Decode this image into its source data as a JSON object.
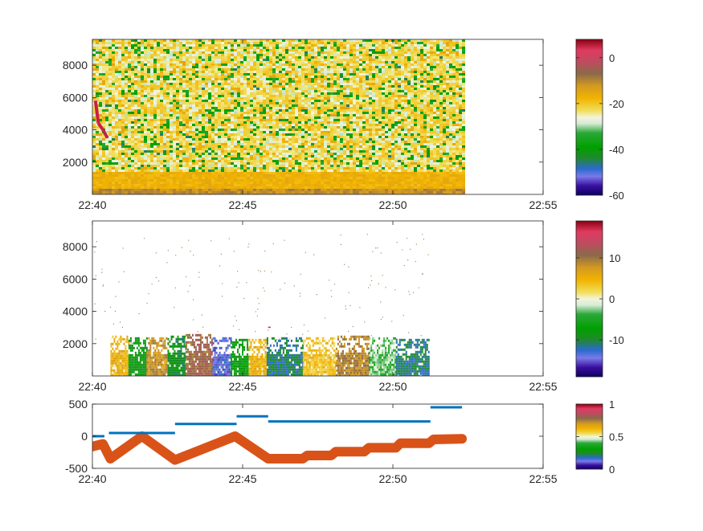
{
  "chart_data": [
    {
      "type": "heatmap",
      "title": "",
      "xlabel": "",
      "ylabel": "",
      "x_ticks": [
        "22:40",
        "22:45",
        "22:50",
        "22:55"
      ],
      "y_ticks": [
        "2000",
        "4000",
        "6000",
        "8000"
      ],
      "y_tick_values": [
        2000,
        4000,
        6000,
        8000
      ],
      "xlim_minutes": [
        0,
        15
      ],
      "ylim": [
        0,
        9600
      ],
      "data_extent_minutes": [
        0,
        12.3
      ],
      "description_values": {
        "low_band_top": 1500,
        "red_feature": [
          [
            0.1,
            5800
          ],
          [
            0.2,
            4400
          ],
          [
            0.35,
            4000
          ],
          [
            0.5,
            3500
          ]
        ],
        "noise_level": -20
      },
      "colorbar": {
        "ticks": [
          "0",
          "-20",
          "-40",
          "-60"
        ],
        "tick_values": [
          0,
          -20,
          -40,
          -60
        ],
        "range": [
          -60,
          8
        ]
      }
    },
    {
      "type": "heatmap",
      "title": "",
      "xlabel": "",
      "ylabel": "",
      "x_ticks": [
        "22:40",
        "22:45",
        "22:50",
        "22:55"
      ],
      "y_ticks": [
        "2000",
        "4000",
        "6000",
        "8000"
      ],
      "y_tick_values": [
        2000,
        4000,
        6000,
        8000
      ],
      "xlim_minutes": [
        0,
        15
      ],
      "ylim": [
        0,
        9600
      ],
      "segments": [
        {
          "start": 0.6,
          "end": 1.2,
          "height": 2200,
          "value": 5
        },
        {
          "start": 1.2,
          "end": 1.8,
          "height": 2100,
          "value": -8
        },
        {
          "start": 1.8,
          "end": 2.5,
          "height": 2100,
          "value": 8
        },
        {
          "start": 2.5,
          "end": 3.1,
          "height": 2200,
          "value": -9
        },
        {
          "start": 3.1,
          "end": 4.0,
          "height": 2300,
          "value": 11
        },
        {
          "start": 4.0,
          "end": 4.6,
          "height": 2100,
          "value": -14
        },
        {
          "start": 4.6,
          "end": 5.2,
          "height": 2000,
          "value": -7
        },
        {
          "start": 5.2,
          "end": 5.8,
          "height": 2000,
          "value": 5
        },
        {
          "start": 5.8,
          "end": 7.0,
          "height": 2100,
          "value": -11
        },
        {
          "start": 7.0,
          "end": 8.1,
          "height": 2100,
          "value": 4
        },
        {
          "start": 8.1,
          "end": 9.2,
          "height": 2200,
          "value": 9
        },
        {
          "start": 9.2,
          "end": 10.1,
          "height": 2100,
          "value": -3
        },
        {
          "start": 10.1,
          "end": 11.2,
          "height": 2000,
          "value": -11
        }
      ],
      "colorbar": {
        "ticks": [
          "10",
          "0",
          "-10"
        ],
        "tick_values": [
          10,
          0,
          -10
        ],
        "range": [
          -19,
          19
        ]
      }
    },
    {
      "type": "line",
      "title": "",
      "xlabel": "",
      "ylabel": "",
      "x_ticks": [
        "22:40",
        "22:45",
        "22:50",
        "22:55"
      ],
      "y_ticks": [
        "500",
        "0",
        "-500"
      ],
      "y_tick_values": [
        500,
        0,
        -500
      ],
      "xlim_minutes": [
        0,
        15
      ],
      "ylim": [
        -500,
        500
      ],
      "series": [
        {
          "color": "#0072BD",
          "style": "step",
          "segments": [
            [
              0.0,
              0.4,
              0
            ],
            [
              0.55,
              2.75,
              50
            ],
            [
              2.75,
              4.8,
              190
            ],
            [
              4.8,
              5.85,
              310
            ],
            [
              5.85,
              11.25,
              230
            ],
            [
              11.25,
              12.3,
              450
            ]
          ]
        },
        {
          "color": "#D95319",
          "style": "thick-line",
          "x": [
            0.0,
            0.35,
            0.6,
            1.65,
            2.75,
            4.75,
            5.85,
            7.0,
            7.15,
            7.95,
            8.1,
            9.05,
            9.2,
            10.1,
            10.25,
            11.2,
            11.35,
            12.3
          ],
          "y": [
            -160,
            -120,
            -350,
            0,
            -370,
            0,
            -350,
            -350,
            -300,
            -300,
            -240,
            -240,
            -180,
            -180,
            -110,
            -110,
            -50,
            -40
          ]
        }
      ],
      "colorbar": {
        "ticks": [
          "1",
          "0.5",
          "0"
        ],
        "tick_values": [
          1,
          0.5,
          0
        ],
        "range": [
          0,
          1
        ]
      }
    }
  ]
}
